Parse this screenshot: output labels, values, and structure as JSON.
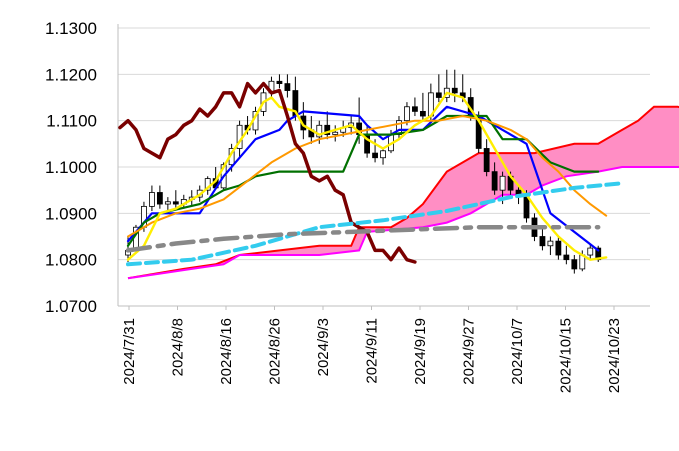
{
  "chart_data": {
    "type": "line",
    "title": "",
    "xlabel": "",
    "ylabel": "",
    "ylim": [
      1.07,
      1.13
    ],
    "y_ticks": [
      "1.1300",
      "1.1200",
      "1.1100",
      "1.1000",
      "1.0900",
      "1.0800",
      "1.0700"
    ],
    "x_ticks": [
      "2024/7/31",
      "2024/8/8",
      "2024/8/16",
      "2024/8/26",
      "2024/9/3",
      "2024/9/11",
      "2024/9/19",
      "2024/9/27",
      "2024/10/7",
      "2024/10/15",
      "2024/10/23"
    ],
    "grid": true,
    "legend": "none",
    "colors": {
      "candle_up": "#ffffff",
      "candle_down": "#000000",
      "cloud_bull": "#ff8ec4",
      "span_a": "#ff0000",
      "span_b": "#ff00ff",
      "conversion": "#0000ff",
      "base": "#007000",
      "lagging": "#7a0000",
      "sma_short": "#ffee00",
      "sma_mid": "#ff9900",
      "sma_long_blue": "#33ccee",
      "sma_long_gray": "#888888"
    },
    "candles": [
      [
        0,
        1.081,
        1.085,
        1.0795,
        1.082
      ],
      [
        1,
        1.0825,
        1.0875,
        1.082,
        1.087
      ],
      [
        2,
        1.087,
        1.0925,
        1.086,
        1.0915
      ],
      [
        3,
        1.0915,
        1.096,
        1.0905,
        1.0945
      ],
      [
        4,
        1.0945,
        1.096,
        1.091,
        1.092
      ],
      [
        5,
        1.092,
        1.0935,
        1.0905,
        1.0925
      ],
      [
        6,
        1.0925,
        1.095,
        1.091,
        1.092
      ],
      [
        7,
        1.092,
        1.094,
        1.091,
        1.093
      ],
      [
        8,
        1.093,
        1.095,
        1.0915,
        1.0935
      ],
      [
        9,
        1.0935,
        1.096,
        1.0925,
        1.095
      ],
      [
        10,
        1.095,
        1.098,
        1.094,
        1.0975
      ],
      [
        11,
        1.0975,
        1.1,
        1.096,
        1.0955
      ],
      [
        12,
        1.0955,
        1.101,
        1.095,
        1.1005
      ],
      [
        13,
        1.1005,
        1.105,
        1.099,
        1.104
      ],
      [
        14,
        1.104,
        1.11,
        1.102,
        1.109
      ],
      [
        15,
        1.109,
        1.111,
        1.107,
        1.108
      ],
      [
        16,
        1.108,
        1.113,
        1.107,
        1.112
      ],
      [
        17,
        1.112,
        1.117,
        1.111,
        1.116
      ],
      [
        18,
        1.116,
        1.1195,
        1.115,
        1.1185
      ],
      [
        19,
        1.1185,
        1.12,
        1.117,
        1.118
      ],
      [
        20,
        1.118,
        1.12,
        1.115,
        1.1165
      ],
      [
        21,
        1.1165,
        1.1195,
        1.11,
        1.111
      ],
      [
        22,
        1.111,
        1.114,
        1.106,
        1.108
      ],
      [
        23,
        1.108,
        1.111,
        1.105,
        1.1065
      ],
      [
        24,
        1.1065,
        1.11,
        1.105,
        1.109
      ],
      [
        25,
        1.109,
        1.112,
        1.106,
        1.107
      ],
      [
        26,
        1.107,
        1.109,
        1.1055,
        1.1075
      ],
      [
        27,
        1.1075,
        1.11,
        1.1065,
        1.1085
      ],
      [
        28,
        1.1085,
        1.111,
        1.107,
        1.1095
      ],
      [
        29,
        1.1095,
        1.115,
        1.105,
        1.107
      ],
      [
        30,
        1.107,
        1.109,
        1.102,
        1.103
      ],
      [
        31,
        1.103,
        1.106,
        1.101,
        1.102
      ],
      [
        32,
        1.102,
        1.104,
        1.1005,
        1.1035
      ],
      [
        33,
        1.1035,
        1.108,
        1.103,
        1.107
      ],
      [
        34,
        1.107,
        1.111,
        1.106,
        1.11
      ],
      [
        35,
        1.11,
        1.114,
        1.109,
        1.113
      ],
      [
        36,
        1.113,
        1.115,
        1.111,
        1.112
      ],
      [
        37,
        1.112,
        1.116,
        1.11,
        1.111
      ],
      [
        38,
        1.111,
        1.118,
        1.11,
        1.116
      ],
      [
        39,
        1.116,
        1.12,
        1.114,
        1.115
      ],
      [
        40,
        1.115,
        1.121,
        1.114,
        1.117
      ],
      [
        41,
        1.117,
        1.121,
        1.114,
        1.116
      ],
      [
        42,
        1.116,
        1.12,
        1.114,
        1.115
      ],
      [
        43,
        1.115,
        1.117,
        1.11,
        1.111
      ],
      [
        44,
        1.111,
        1.112,
        1.103,
        1.104
      ],
      [
        45,
        1.104,
        1.106,
        1.098,
        1.099
      ],
      [
        46,
        1.099,
        1.101,
        1.094,
        1.095
      ],
      [
        47,
        1.095,
        1.099,
        1.092,
        1.098
      ],
      [
        48,
        1.098,
        1.099,
        1.094,
        1.095
      ],
      [
        49,
        1.095,
        1.096,
        1.092,
        1.094
      ],
      [
        50,
        1.094,
        1.095,
        1.088,
        1.089
      ],
      [
        51,
        1.089,
        1.09,
        1.084,
        1.085
      ],
      [
        52,
        1.085,
        1.087,
        1.082,
        1.083
      ],
      [
        53,
        1.083,
        1.085,
        1.081,
        1.084
      ],
      [
        54,
        1.084,
        1.085,
        1.08,
        1.081
      ],
      [
        55,
        1.081,
        1.083,
        1.079,
        1.08
      ],
      [
        56,
        1.08,
        1.081,
        1.077,
        1.078
      ],
      [
        57,
        1.078,
        1.082,
        1.0775,
        1.081
      ],
      [
        58,
        1.081,
        1.0835,
        1.08,
        1.0825
      ],
      [
        59,
        1.0825,
        1.083,
        1.0795,
        1.08
      ]
    ],
    "lines": [
      {
        "key": "conversion",
        "width": 2.2,
        "points": [
          [
            0,
            1.084
          ],
          [
            2,
            1.088
          ],
          [
            3,
            1.09
          ],
          [
            9,
            1.09
          ],
          [
            12,
            1.098
          ],
          [
            14,
            1.102
          ],
          [
            16,
            1.106
          ],
          [
            19,
            1.108
          ],
          [
            20,
            1.11
          ],
          [
            22,
            1.112
          ],
          [
            29,
            1.111
          ],
          [
            30,
            1.109
          ],
          [
            32,
            1.106
          ],
          [
            34,
            1.108
          ],
          [
            37,
            1.108
          ],
          [
            40,
            1.113
          ],
          [
            44,
            1.111
          ],
          [
            47,
            1.108
          ],
          [
            50,
            1.105
          ],
          [
            53,
            1.09
          ],
          [
            56,
            1.086
          ],
          [
            59,
            1.082
          ]
        ]
      },
      {
        "key": "base",
        "width": 2.2,
        "points": [
          [
            0,
            1.083
          ],
          [
            2,
            1.088
          ],
          [
            4,
            1.09
          ],
          [
            9,
            1.092
          ],
          [
            12,
            1.095
          ],
          [
            14,
            1.096
          ],
          [
            16,
            1.098
          ],
          [
            19,
            1.099
          ],
          [
            27,
            1.099
          ],
          [
            29,
            1.107
          ],
          [
            33,
            1.107
          ],
          [
            37,
            1.108
          ],
          [
            40,
            1.111
          ],
          [
            45,
            1.111
          ],
          [
            47,
            1.106
          ],
          [
            50,
            1.106
          ],
          [
            53,
            1.101
          ],
          [
            56,
            1.099
          ],
          [
            59,
            1.099
          ]
        ]
      },
      {
        "key": "sma_mid",
        "width": 2,
        "points": [
          [
            0,
            1.085
          ],
          [
            3,
            1.088
          ],
          [
            6,
            1.09
          ],
          [
            9,
            1.091
          ],
          [
            12,
            1.093
          ],
          [
            15,
            1.097
          ],
          [
            18,
            1.101
          ],
          [
            21,
            1.104
          ],
          [
            24,
            1.106
          ],
          [
            27,
            1.107
          ],
          [
            30,
            1.108
          ],
          [
            33,
            1.109
          ],
          [
            36,
            1.11
          ],
          [
            39,
            1.11
          ],
          [
            42,
            1.111
          ],
          [
            45,
            1.11
          ],
          [
            48,
            1.108
          ],
          [
            50,
            1.106
          ],
          [
            52,
            1.102
          ],
          [
            54,
            1.099
          ],
          [
            56,
            1.095
          ],
          [
            58,
            1.092
          ],
          [
            60,
            1.0895
          ]
        ]
      },
      {
        "key": "sma_short",
        "width": 2.4,
        "points": [
          [
            0,
            1.08
          ],
          [
            2,
            1.083
          ],
          [
            4,
            1.09
          ],
          [
            6,
            1.091
          ],
          [
            9,
            1.094
          ],
          [
            11,
            1.097
          ],
          [
            13,
            1.103
          ],
          [
            15,
            1.108
          ],
          [
            17,
            1.114
          ],
          [
            18,
            1.115
          ],
          [
            19,
            1.113
          ],
          [
            21,
            1.112
          ],
          [
            22,
            1.109
          ],
          [
            24,
            1.107
          ],
          [
            26,
            1.108
          ],
          [
            28,
            1.109
          ],
          [
            30,
            1.106
          ],
          [
            32,
            1.104
          ],
          [
            34,
            1.106
          ],
          [
            36,
            1.109
          ],
          [
            38,
            1.111
          ],
          [
            40,
            1.116
          ],
          [
            42,
            1.115
          ],
          [
            44,
            1.11
          ],
          [
            46,
            1.104
          ],
          [
            48,
            1.098
          ],
          [
            50,
            1.094
          ],
          [
            52,
            1.089
          ],
          [
            54,
            1.085
          ],
          [
            56,
            1.082
          ],
          [
            58,
            1.08
          ],
          [
            60,
            1.0805
          ]
        ]
      },
      {
        "key": "lagging",
        "width": 3.5,
        "points": [
          [
            -1,
            1.1085
          ],
          [
            0,
            1.11
          ],
          [
            1,
            1.108
          ],
          [
            2,
            1.104
          ],
          [
            3,
            1.103
          ],
          [
            4,
            1.102
          ],
          [
            5,
            1.106
          ],
          [
            6,
            1.107
          ],
          [
            7,
            1.109
          ],
          [
            8,
            1.11
          ],
          [
            9,
            1.1125
          ],
          [
            10,
            1.111
          ],
          [
            11,
            1.113
          ],
          [
            12,
            1.116
          ],
          [
            13,
            1.116
          ],
          [
            14,
            1.113
          ],
          [
            15,
            1.118
          ],
          [
            16,
            1.116
          ],
          [
            17,
            1.118
          ],
          [
            18,
            1.116
          ],
          [
            19,
            1.1165
          ],
          [
            20,
            1.111
          ],
          [
            21,
            1.105
          ],
          [
            22,
            1.103
          ],
          [
            23,
            1.098
          ],
          [
            24,
            1.097
          ],
          [
            25,
            1.098
          ],
          [
            26,
            1.095
          ],
          [
            27,
            1.094
          ],
          [
            28,
            1.088
          ],
          [
            29,
            1.087
          ],
          [
            30,
            1.086
          ],
          [
            31,
            1.082
          ],
          [
            32,
            1.082
          ],
          [
            33,
            1.08
          ],
          [
            34,
            1.0825
          ],
          [
            35,
            1.08
          ],
          [
            36,
            1.0795
          ]
        ]
      }
    ],
    "dashed_lines": [
      {
        "key": "sma_long_blue",
        "width": 4,
        "dash": "12 6",
        "points": [
          [
            0,
            1.079
          ],
          [
            8,
            1.08
          ],
          [
            16,
            1.083
          ],
          [
            24,
            1.087
          ],
          [
            32,
            1.0885
          ],
          [
            40,
            1.0905
          ],
          [
            48,
            1.0935
          ],
          [
            56,
            1.0955
          ],
          [
            62,
            1.0965
          ]
        ]
      },
      {
        "key": "sma_long_gray",
        "width": 4.5,
        "dash": "22 8 6 8",
        "points": [
          [
            0,
            1.082
          ],
          [
            6,
            1.0835
          ],
          [
            12,
            1.0845
          ],
          [
            20,
            1.0855
          ],
          [
            28,
            1.086
          ],
          [
            36,
            1.0865
          ],
          [
            44,
            1.087
          ],
          [
            52,
            1.087
          ],
          [
            59,
            1.087
          ]
        ]
      }
    ],
    "cloud": {
      "span_a": [
        [
          0,
          1.076
        ],
        [
          7,
          1.078
        ],
        [
          11,
          1.079
        ],
        [
          14,
          1.081
        ],
        [
          24,
          1.083
        ],
        [
          28,
          1.083
        ],
        [
          29,
          1.087
        ],
        [
          33,
          1.087
        ],
        [
          35,
          1.089
        ],
        [
          37,
          1.092
        ],
        [
          40,
          1.099
        ],
        [
          44,
          1.103
        ],
        [
          49,
          1.103
        ],
        [
          51,
          1.103
        ],
        [
          56,
          1.105
        ],
        [
          59,
          1.105
        ],
        [
          62,
          1.108
        ],
        [
          64,
          1.11
        ],
        [
          66,
          1.113
        ],
        [
          69,
          1.113
        ],
        [
          71,
          1.112
        ]
      ],
      "span_b": [
        [
          0,
          1.076
        ],
        [
          4,
          1.077
        ],
        [
          8,
          1.078
        ],
        [
          12,
          1.079
        ],
        [
          14,
          1.081
        ],
        [
          24,
          1.081
        ],
        [
          29,
          1.082
        ],
        [
          30,
          1.086
        ],
        [
          37,
          1.087
        ],
        [
          40,
          1.088
        ],
        [
          43,
          1.09
        ],
        [
          47,
          1.094
        ],
        [
          50,
          1.094
        ],
        [
          52,
          1.096
        ],
        [
          55,
          1.098
        ],
        [
          59,
          1.099
        ],
        [
          62,
          1.1
        ],
        [
          66,
          1.1
        ],
        [
          71,
          1.1
        ]
      ]
    }
  }
}
